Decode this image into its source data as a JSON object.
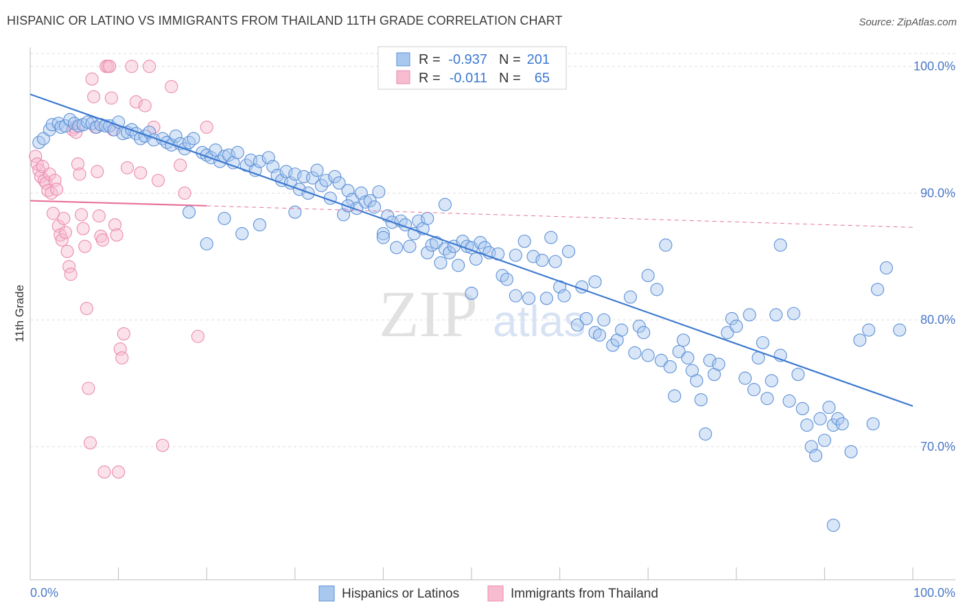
{
  "title": "HISPANIC OR LATINO VS IMMIGRANTS FROM THAILAND 11TH GRADE CORRELATION CHART",
  "source": "Source: ZipAtlas.com",
  "watermark": {
    "zip": "ZIP",
    "atlas": "atlas"
  },
  "stats": [
    {
      "r_label": "R =",
      "r_value": "-0.937",
      "n_label": "N =",
      "n_value": "201"
    },
    {
      "r_label": "R =",
      "r_value": "-0.011",
      "n_label": "N =",
      "n_value": "65"
    }
  ],
  "colors": {
    "blue_fill": "#a9c8f0",
    "blue_stroke": "#5b8fd6",
    "blue_line": "#3b78d0",
    "pink_fill": "#f7bcd0",
    "pink_stroke": "#ea8aae",
    "pink_line": "#e8739a",
    "axis_text": "#4a78c8",
    "grid": "#dddddd"
  },
  "chart_data": {
    "type": "scatter",
    "title": "HISPANIC OR LATINO VS IMMIGRANTS FROM THAILAND 11TH GRADE CORRELATION CHART",
    "xlabel": "",
    "ylabel": "11th Grade",
    "xlim": [
      0,
      100
    ],
    "ylim": [
      59.5,
      101.5
    ],
    "x_tick_labels": [
      "0.0%",
      "100.0%"
    ],
    "y_ticks": [
      70,
      80,
      90,
      100
    ],
    "y_tick_labels": [
      "70.0%",
      "80.0%",
      "90.0%",
      "100.0%"
    ],
    "grid": true,
    "legend_position": "bottom-center",
    "series": [
      {
        "name": "Hispanics or Latinos",
        "color": "#a9c8f0",
        "trend": {
          "x": [
            0,
            100
          ],
          "y": [
            97.8,
            73.2
          ]
        },
        "points": [
          [
            1.0,
            94.0
          ],
          [
            1.5,
            94.3
          ],
          [
            2.2,
            95.0
          ],
          [
            2.5,
            95.4
          ],
          [
            3.2,
            95.5
          ],
          [
            3.5,
            95.2
          ],
          [
            4.0,
            95.3
          ],
          [
            4.5,
            95.8
          ],
          [
            5.0,
            95.5
          ],
          [
            5.5,
            95.3
          ],
          [
            6.0,
            95.4
          ],
          [
            6.5,
            95.6
          ],
          [
            7.0,
            95.5
          ],
          [
            7.5,
            95.2
          ],
          [
            8.0,
            95.4
          ],
          [
            8.5,
            95.3
          ],
          [
            9.0,
            95.3
          ],
          [
            9.5,
            95.0
          ],
          [
            10.0,
            95.6
          ],
          [
            10.5,
            94.7
          ],
          [
            11.0,
            94.8
          ],
          [
            11.5,
            95.0
          ],
          [
            12.0,
            94.7
          ],
          [
            12.5,
            94.3
          ],
          [
            13.0,
            94.5
          ],
          [
            13.5,
            94.8
          ],
          [
            14.0,
            94.2
          ],
          [
            15.0,
            94.3
          ],
          [
            15.5,
            94.0
          ],
          [
            16.0,
            93.8
          ],
          [
            16.5,
            94.5
          ],
          [
            17.0,
            93.9
          ],
          [
            17.5,
            93.5
          ],
          [
            18.0,
            94.0
          ],
          [
            18.5,
            94.3
          ],
          [
            19.5,
            93.2
          ],
          [
            20.0,
            93.0
          ],
          [
            20.5,
            92.8
          ],
          [
            21.0,
            93.4
          ],
          [
            21.5,
            92.5
          ],
          [
            22.0,
            92.9
          ],
          [
            22.5,
            93.0
          ],
          [
            23.0,
            92.4
          ],
          [
            23.5,
            93.2
          ],
          [
            24.5,
            92.2
          ],
          [
            25.0,
            92.6
          ],
          [
            25.5,
            91.8
          ],
          [
            26.0,
            92.5
          ],
          [
            27.0,
            92.8
          ],
          [
            27.5,
            92.1
          ],
          [
            28.0,
            91.4
          ],
          [
            28.5,
            91.0
          ],
          [
            29.0,
            91.7
          ],
          [
            29.5,
            90.8
          ],
          [
            30.0,
            91.5
          ],
          [
            30.5,
            90.3
          ],
          [
            31.0,
            91.3
          ],
          [
            31.5,
            90.0
          ],
          [
            32.0,
            91.2
          ],
          [
            32.5,
            91.8
          ],
          [
            33.0,
            90.6
          ],
          [
            33.5,
            91.0
          ],
          [
            34.0,
            89.6
          ],
          [
            34.5,
            91.3
          ],
          [
            35.0,
            90.8
          ],
          [
            35.5,
            88.3
          ],
          [
            36.0,
            90.2
          ],
          [
            36.5,
            89.5
          ],
          [
            37.0,
            88.8
          ],
          [
            37.5,
            90.0
          ],
          [
            38.0,
            89.3
          ],
          [
            38.5,
            89.4
          ],
          [
            39.0,
            88.9
          ],
          [
            39.5,
            90.1
          ],
          [
            40.0,
            86.8
          ],
          [
            40.5,
            88.2
          ],
          [
            41.0,
            87.7
          ],
          [
            41.5,
            85.7
          ],
          [
            42.0,
            87.8
          ],
          [
            42.5,
            87.5
          ],
          [
            43.0,
            85.8
          ],
          [
            43.5,
            86.8
          ],
          [
            44.0,
            87.8
          ],
          [
            44.5,
            87.2
          ],
          [
            45.0,
            85.3
          ],
          [
            45.5,
            85.9
          ],
          [
            46.0,
            86.1
          ],
          [
            46.5,
            84.5
          ],
          [
            47.0,
            85.6
          ],
          [
            47.5,
            85.3
          ],
          [
            48.0,
            85.8
          ],
          [
            48.5,
            84.3
          ],
          [
            49.0,
            86.2
          ],
          [
            49.5,
            85.8
          ],
          [
            50.0,
            85.7
          ],
          [
            50.5,
            84.8
          ],
          [
            51.0,
            86.1
          ],
          [
            51.5,
            85.7
          ],
          [
            52.0,
            85.3
          ],
          [
            53.0,
            85.2
          ],
          [
            53.5,
            83.5
          ],
          [
            54.0,
            83.2
          ],
          [
            55.0,
            81.9
          ],
          [
            56.0,
            86.2
          ],
          [
            56.5,
            81.7
          ],
          [
            57.0,
            85.0
          ],
          [
            58.0,
            84.7
          ],
          [
            58.5,
            81.7
          ],
          [
            59.0,
            86.5
          ],
          [
            59.5,
            84.6
          ],
          [
            60.0,
            82.6
          ],
          [
            60.5,
            81.9
          ],
          [
            61.0,
            85.4
          ],
          [
            62.0,
            79.6
          ],
          [
            62.5,
            82.6
          ],
          [
            63.0,
            80.1
          ],
          [
            64.0,
            79.0
          ],
          [
            64.5,
            78.8
          ],
          [
            65.0,
            80.0
          ],
          [
            66.0,
            78.0
          ],
          [
            66.5,
            78.4
          ],
          [
            67.0,
            79.2
          ],
          [
            68.0,
            81.8
          ],
          [
            68.5,
            77.4
          ],
          [
            69.0,
            79.5
          ],
          [
            69.5,
            79.0
          ],
          [
            70.0,
            77.2
          ],
          [
            71.0,
            82.4
          ],
          [
            71.5,
            76.8
          ],
          [
            72.5,
            76.3
          ],
          [
            73.0,
            74.0
          ],
          [
            73.5,
            77.5
          ],
          [
            74.0,
            78.4
          ],
          [
            74.5,
            77.0
          ],
          [
            75.0,
            76.0
          ],
          [
            75.5,
            75.2
          ],
          [
            76.0,
            73.7
          ],
          [
            76.5,
            71.0
          ],
          [
            77.0,
            76.8
          ],
          [
            77.5,
            75.7
          ],
          [
            78.0,
            76.5
          ],
          [
            79.0,
            79.0
          ],
          [
            79.5,
            80.1
          ],
          [
            80.0,
            79.5
          ],
          [
            81.0,
            75.4
          ],
          [
            81.5,
            80.4
          ],
          [
            82.0,
            74.5
          ],
          [
            82.5,
            77.0
          ],
          [
            83.0,
            78.2
          ],
          [
            83.5,
            73.8
          ],
          [
            84.0,
            75.2
          ],
          [
            84.5,
            80.4
          ],
          [
            85.0,
            77.2
          ],
          [
            86.0,
            73.6
          ],
          [
            86.5,
            80.5
          ],
          [
            87.0,
            75.7
          ],
          [
            87.5,
            73.0
          ],
          [
            88.0,
            71.7
          ],
          [
            88.5,
            70.0
          ],
          [
            89.0,
            69.3
          ],
          [
            89.5,
            72.2
          ],
          [
            90.0,
            70.5
          ],
          [
            90.5,
            73.1
          ],
          [
            91.0,
            71.7
          ],
          [
            91.5,
            72.2
          ],
          [
            92.0,
            71.8
          ],
          [
            93.0,
            69.6
          ],
          [
            94.0,
            78.4
          ],
          [
            95.0,
            79.2
          ],
          [
            95.5,
            71.8
          ],
          [
            96.0,
            82.4
          ],
          [
            97.0,
            84.1
          ],
          [
            98.5,
            79.2
          ],
          [
            91.0,
            63.8
          ],
          [
            85.0,
            85.9
          ],
          [
            72.0,
            85.9
          ],
          [
            70.0,
            83.5
          ],
          [
            64.0,
            83.0
          ],
          [
            55.0,
            85.1
          ],
          [
            50.0,
            82.1
          ],
          [
            47.0,
            89.1
          ],
          [
            45.0,
            88.0
          ],
          [
            40.0,
            86.5
          ],
          [
            36.0,
            89.0
          ],
          [
            30.0,
            88.5
          ],
          [
            26.0,
            87.5
          ],
          [
            24.0,
            86.8
          ],
          [
            22.0,
            88.0
          ],
          [
            20.0,
            86.0
          ],
          [
            18.0,
            88.5
          ]
        ]
      },
      {
        "name": "Immigrants from Thailand",
        "color": "#f7bcd0",
        "trend": {
          "x": [
            0,
            20
          ],
          "y": [
            89.4,
            89.0
          ]
        },
        "trend_dashed": {
          "x": [
            20,
            100
          ],
          "y": [
            89.0,
            87.3
          ]
        },
        "points": [
          [
            0.6,
            92.9
          ],
          [
            0.8,
            92.3
          ],
          [
            1.0,
            91.8
          ],
          [
            1.2,
            91.3
          ],
          [
            1.4,
            92.1
          ],
          [
            1.6,
            91.0
          ],
          [
            1.8,
            90.8
          ],
          [
            2.0,
            90.2
          ],
          [
            2.2,
            91.5
          ],
          [
            2.4,
            90.0
          ],
          [
            2.6,
            88.4
          ],
          [
            2.8,
            91.0
          ],
          [
            3.0,
            90.3
          ],
          [
            3.2,
            87.4
          ],
          [
            3.4,
            86.7
          ],
          [
            3.6,
            86.3
          ],
          [
            3.8,
            88.0
          ],
          [
            4.0,
            86.9
          ],
          [
            4.2,
            85.4
          ],
          [
            4.4,
            84.2
          ],
          [
            4.6,
            83.6
          ],
          [
            4.8,
            95.0
          ],
          [
            5.0,
            95.2
          ],
          [
            5.2,
            94.8
          ],
          [
            5.4,
            92.3
          ],
          [
            5.6,
            91.5
          ],
          [
            5.8,
            88.3
          ],
          [
            6.0,
            87.2
          ],
          [
            6.2,
            85.8
          ],
          [
            6.4,
            80.9
          ],
          [
            6.6,
            74.6
          ],
          [
            6.8,
            70.3
          ],
          [
            7.0,
            99.0
          ],
          [
            7.2,
            97.6
          ],
          [
            7.4,
            95.2
          ],
          [
            7.6,
            91.7
          ],
          [
            7.8,
            88.2
          ],
          [
            8.0,
            86.6
          ],
          [
            8.2,
            86.3
          ],
          [
            8.4,
            68.0
          ],
          [
            8.6,
            100.0
          ],
          [
            8.8,
            100.0
          ],
          [
            9.0,
            100.0
          ],
          [
            9.2,
            97.5
          ],
          [
            9.4,
            95.0
          ],
          [
            9.6,
            87.5
          ],
          [
            9.8,
            86.7
          ],
          [
            10.0,
            68.0
          ],
          [
            10.2,
            77.7
          ],
          [
            10.4,
            77.0
          ],
          [
            10.6,
            78.9
          ],
          [
            11.0,
            92.0
          ],
          [
            12.0,
            97.2
          ],
          [
            12.5,
            91.6
          ],
          [
            13.0,
            96.9
          ],
          [
            14.0,
            95.2
          ],
          [
            16.0,
            98.4
          ],
          [
            17.0,
            92.2
          ],
          [
            17.5,
            90.0
          ],
          [
            19.0,
            78.7
          ],
          [
            20.0,
            95.2
          ],
          [
            14.5,
            91.0
          ],
          [
            13.5,
            100.0
          ],
          [
            11.5,
            100.0
          ],
          [
            15.0,
            70.1
          ]
        ]
      }
    ]
  },
  "legend": [
    {
      "label": "Hispanics or Latinos",
      "color": "#a9c8f0"
    },
    {
      "label": "Immigrants from Thailand",
      "color": "#f7bcd0"
    }
  ]
}
